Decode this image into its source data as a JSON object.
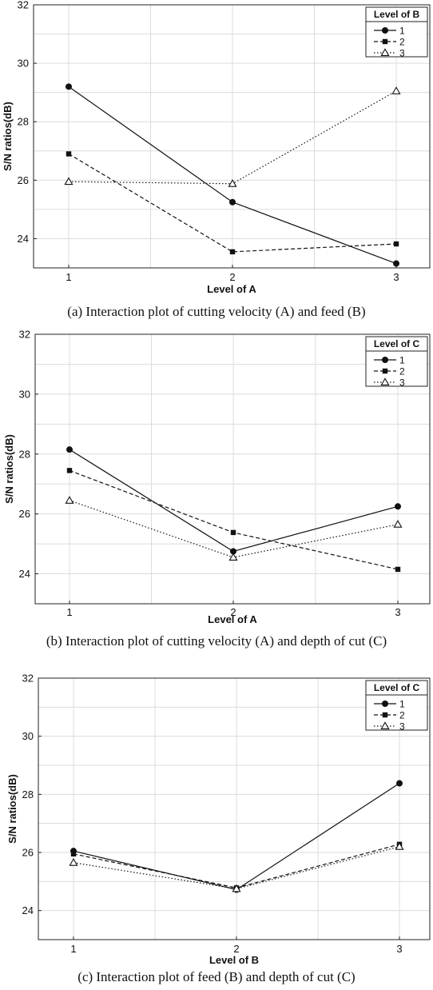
{
  "chart_data": [
    {
      "type": "line",
      "title": "",
      "xlabel": "Level of A",
      "ylabel": "S/N ratios(dB)",
      "categories": [
        "1",
        "2",
        "3"
      ],
      "ylim": [
        23,
        32
      ],
      "yticks": [
        "24",
        "26",
        "28",
        "30",
        "32"
      ],
      "grid": true,
      "legend": {
        "title": "Level of B",
        "placement": "top-right"
      },
      "series": [
        {
          "name": "1",
          "values": [
            29.2,
            25.25,
            23.15
          ],
          "marker": "circle",
          "dash": "solid"
        },
        {
          "name": "2",
          "values": [
            26.9,
            23.55,
            23.82
          ],
          "marker": "square",
          "dash": "dashed"
        },
        {
          "name": "3",
          "values": [
            25.95,
            25.88,
            29.05
          ],
          "marker": "triangle",
          "dash": "dotted"
        }
      ],
      "caption": "(a) Interaction plot of cutting velocity (A) and feed (B)"
    },
    {
      "type": "line",
      "title": "",
      "xlabel": "Level of A",
      "ylabel": "S/N ratios(dB)",
      "categories": [
        "1",
        "2",
        "3"
      ],
      "ylim": [
        23,
        32
      ],
      "yticks": [
        "24",
        "26",
        "28",
        "30",
        "32"
      ],
      "grid": true,
      "legend": {
        "title": "Level of C",
        "placement": "top-right"
      },
      "series": [
        {
          "name": "1",
          "values": [
            28.15,
            24.75,
            26.25
          ],
          "marker": "circle",
          "dash": "solid"
        },
        {
          "name": "2",
          "values": [
            27.45,
            25.38,
            24.15
          ],
          "marker": "square",
          "dash": "dashed"
        },
        {
          "name": "3",
          "values": [
            26.45,
            24.55,
            25.65
          ],
          "marker": "triangle",
          "dash": "dotted"
        }
      ],
      "caption": "(b) Interaction plot of cutting velocity (A) and depth of cut (C)"
    },
    {
      "type": "line",
      "title": "",
      "xlabel": "Level of B",
      "ylabel": "S/N ratios(dB)",
      "categories": [
        "1",
        "2",
        "3"
      ],
      "ylim": [
        23,
        32
      ],
      "yticks": [
        "24",
        "26",
        "28",
        "30",
        "32"
      ],
      "grid": true,
      "legend": {
        "title": "Level of C",
        "placement": "top-right"
      },
      "series": [
        {
          "name": "1",
          "values": [
            26.05,
            24.72,
            28.38
          ],
          "marker": "circle",
          "dash": "solid"
        },
        {
          "name": "2",
          "values": [
            25.95,
            24.78,
            26.28
          ],
          "marker": "square",
          "dash": "dashed"
        },
        {
          "name": "3",
          "values": [
            25.65,
            24.75,
            26.2
          ],
          "marker": "triangle",
          "dash": "dotted"
        }
      ],
      "caption": "(c) Interaction plot of feed (B) and depth of cut (C)"
    }
  ]
}
